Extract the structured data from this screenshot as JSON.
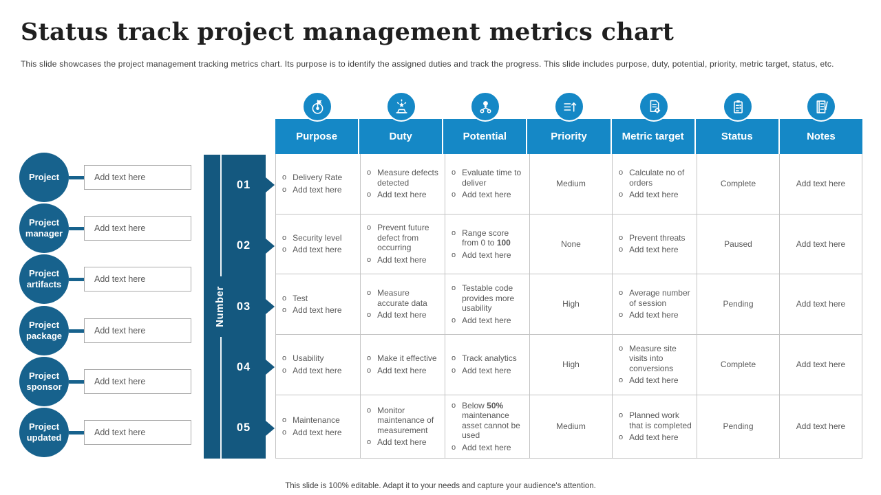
{
  "slide": {
    "title": "Status track project management metrics chart",
    "subtitle": "This slide showcases the project management tracking metrics chart. Its purpose is to identify the assigned duties and track the progress. This slide includes purpose, duty, potential, priority, metric target, status, etc.",
    "footer": "This slide is 100% editable. Adapt it to your needs and capture your audience's attention."
  },
  "colors": {
    "header_blue": "#1588c6",
    "circle_blue": "#17628d",
    "bar_blue": "#14587f",
    "body_text": "#595959",
    "grid_line": "#c3c3c3"
  },
  "ui": {
    "bullet_char": "o"
  },
  "left_panel": {
    "items": [
      {
        "label": "Project",
        "value": "Add text here"
      },
      {
        "label": "Project manager",
        "value": "Add text here"
      },
      {
        "label": "Project artifacts",
        "value": "Add text here"
      },
      {
        "label": "Project package",
        "value": "Add text here"
      },
      {
        "label": "Project sponsor",
        "value": "Add text here"
      },
      {
        "label": "Project updated",
        "value": "Add text here"
      }
    ]
  },
  "number_column": {
    "label": "Number",
    "numbers": [
      "01",
      "02",
      "03",
      "04",
      "05"
    ]
  },
  "table": {
    "columns": [
      {
        "label": "Purpose",
        "icon": "target-flag-icon"
      },
      {
        "label": "Duty",
        "icon": "podium-star-icon"
      },
      {
        "label": "Potential",
        "icon": "idea-network-icon"
      },
      {
        "label": "Priority",
        "icon": "priority-list-icon"
      },
      {
        "label": "Metric target",
        "icon": "document-gear-icon"
      },
      {
        "label": "Status",
        "icon": "clipboard-checklist-icon"
      },
      {
        "label": "Notes",
        "icon": "notebook-pencil-icon"
      }
    ],
    "rows": [
      {
        "number": "01",
        "purpose": [
          "Delivery Rate",
          "Add text here"
        ],
        "duty": [
          "Measure defects detected",
          "Add text here"
        ],
        "potential": [
          "Evaluate time to deliver",
          "Add text here"
        ],
        "priority": "Medium",
        "metric_target": [
          "Calculate no of orders",
          "Add text here"
        ],
        "status": "Complete",
        "notes": "Add text here"
      },
      {
        "number": "02",
        "purpose": [
          "Security level",
          "Add text here"
        ],
        "duty": [
          "Prevent future defect from occurring",
          "Add text here"
        ],
        "potential": [
          "Range score from 0 to **100**",
          "Add text here"
        ],
        "priority": "None",
        "metric_target": [
          "Prevent threats",
          "Add text here"
        ],
        "status": "Paused",
        "notes": "Add text here"
      },
      {
        "number": "03",
        "purpose": [
          "Test",
          "Add text here"
        ],
        "duty": [
          "Measure accurate data",
          "Add text here"
        ],
        "potential": [
          "Testable code provides more usability",
          "Add text here"
        ],
        "priority": "High",
        "metric_target": [
          "Average number of session",
          "Add text here"
        ],
        "status": "Pending",
        "notes": "Add text here"
      },
      {
        "number": "04",
        "purpose": [
          "Usability",
          "Add text here"
        ],
        "duty": [
          "Make it effective",
          "Add text here"
        ],
        "potential": [
          "Track analytics",
          "Add text here"
        ],
        "priority": "High",
        "metric_target": [
          "Measure site visits into conversions",
          "Add text here"
        ],
        "status": "Complete",
        "notes": "Add text here"
      },
      {
        "number": "05",
        "purpose": [
          "Maintenance",
          "Add text here"
        ],
        "duty": [
          "Monitor maintenance of measurement",
          "Add text here"
        ],
        "potential": [
          "Below **50%** maintenance asset cannot be used",
          "Add text here"
        ],
        "priority": "Medium",
        "metric_target": [
          "Planned work that is completed",
          "Add text here"
        ],
        "status": "Pending",
        "notes": "Add text here"
      }
    ]
  }
}
